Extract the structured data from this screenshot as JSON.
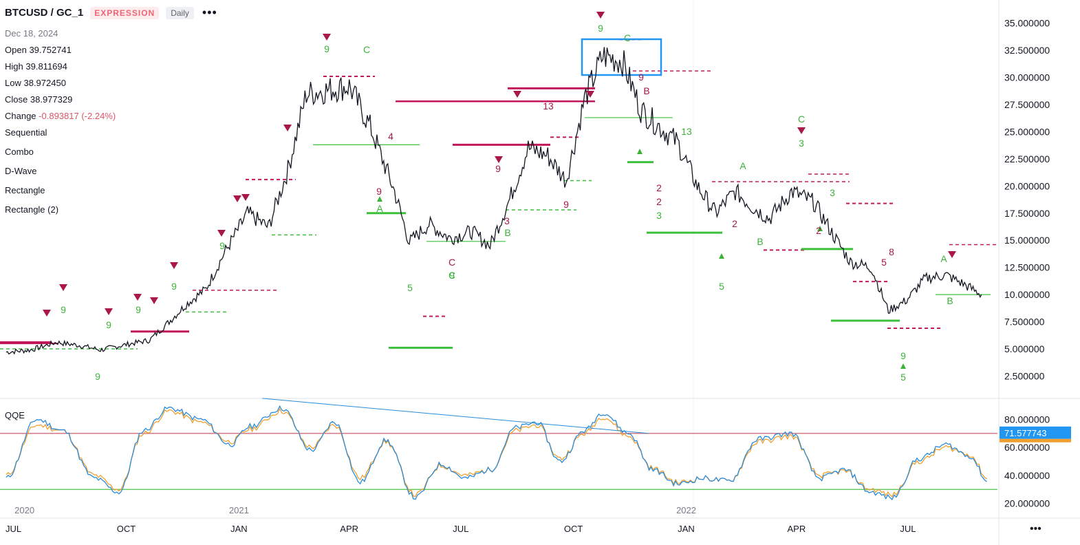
{
  "header": {
    "symbol": "BTCUSD / GC_1",
    "badge_type": "EXPRESSION",
    "interval": "Daily",
    "more_icon": "ellipsis-icon"
  },
  "ohlc": {
    "date": "Dec 18, 2024",
    "open_label": "Open",
    "open": "39.752741",
    "high_label": "High",
    "high": "39.811694",
    "low_label": "Low",
    "low": "38.972450",
    "close_label": "Close",
    "close": "38.977329",
    "change_label": "Change",
    "change": "-0.893817 (-2.24%)"
  },
  "indicators": [
    "Sequential",
    "Combo",
    "D-Wave",
    "Rectangle",
    "Rectangle (2)"
  ],
  "qqe_label": "QQE",
  "colors": {
    "price": "#131722",
    "sell_marker": "#a9174b",
    "buy_marker": "#3bb33b",
    "resistance": "#c2185b",
    "support": "#3cc03c",
    "qqe_fast": "#2a8bd8",
    "qqe_slow": "#f0a030",
    "qqe_upper": "#d26b7a",
    "qqe_lower": "#4cc24c",
    "badge_bg": "#2196f3",
    "highlight_box": "#2196f3"
  },
  "chart_data": [
    {
      "type": "line",
      "name": "BTCUSD / GC_1",
      "x_ticks": [
        "JUL",
        "2020",
        "OCT",
        "JAN",
        "2021",
        "APR",
        "JUL",
        "OCT",
        "JAN",
        "2022",
        "APR",
        "JUL"
      ],
      "x": [
        "2020-06-25",
        "2020-07-15",
        "2020-08-05",
        "2020-08-25",
        "2020-09-10",
        "2020-10-01",
        "2020-10-20",
        "2020-11-05",
        "2020-11-20",
        "2020-12-05",
        "2020-12-20",
        "2021-01-08",
        "2021-01-25",
        "2021-02-10",
        "2021-02-25",
        "2021-03-12",
        "2021-04-01",
        "2021-04-18",
        "2021-05-08",
        "2021-05-20",
        "2021-06-05",
        "2021-06-22",
        "2021-07-10",
        "2021-07-25",
        "2021-08-10",
        "2021-08-25",
        "2021-09-10",
        "2021-09-25",
        "2021-10-10",
        "2021-10-25",
        "2021-11-10",
        "2021-11-25",
        "2021-12-10",
        "2021-12-25",
        "2022-01-10",
        "2022-01-25",
        "2022-02-10",
        "2022-02-25",
        "2022-03-10",
        "2022-03-28",
        "2022-04-15",
        "2022-05-01",
        "2022-05-15",
        "2022-06-01",
        "2022-06-15",
        "2022-06-30",
        "2022-07-15",
        "2022-08-01",
        "2022-08-15",
        "2022-08-30"
      ],
      "y": [
        4.7,
        4.9,
        5.6,
        5.3,
        4.9,
        5.4,
        5.8,
        7.5,
        9.2,
        10.5,
        13.8,
        17.5,
        16.2,
        21.5,
        28.5,
        28.8,
        29.2,
        25.5,
        19.5,
        14.8,
        16.5,
        15.2,
        15.8,
        14.5,
        18.8,
        23.5,
        22.8,
        20.5,
        28.0,
        32.0,
        31.5,
        27.0,
        25.5,
        24.0,
        20.0,
        17.5,
        19.5,
        18.0,
        17.0,
        19.5,
        18.5,
        15.5,
        13.0,
        12.5,
        8.5,
        9.5,
        11.5,
        11.8,
        11.0,
        10.0
      ],
      "ylim": [
        0.5,
        36.5
      ],
      "y_ticks": [
        "35.000000",
        "32.500000",
        "30.000000",
        "27.500000",
        "25.000000",
        "22.500000",
        "20.000000",
        "17.500000",
        "15.000000",
        "12.500000",
        "10.000000",
        "7.500000",
        "5.000000",
        "2.500000"
      ],
      "resistance_levels": [
        {
          "y": 5.6
        },
        {
          "y": 5.5
        },
        {
          "y": 6.6
        },
        {
          "y": 10.4
        },
        {
          "y": 20.6
        },
        {
          "y": 30.1
        },
        {
          "y": 27.8
        },
        {
          "y": 29.0
        },
        {
          "y": 23.8
        },
        {
          "y": 24.5
        },
        {
          "y": 33.5
        },
        {
          "y": 30.6
        },
        {
          "y": 20.4
        },
        {
          "y": 21.1
        },
        {
          "y": 18.4
        },
        {
          "y": 14.1
        },
        {
          "y": 11.2
        },
        {
          "y": 14.6
        },
        {
          "y": 6.9
        },
        {
          "y": 8.0
        }
      ],
      "support_levels": [
        {
          "y": 5.0
        },
        {
          "y": 8.4
        },
        {
          "y": 15.5
        },
        {
          "y": 23.8
        },
        {
          "y": 17.5
        },
        {
          "y": 14.9
        },
        {
          "y": 17.8
        },
        {
          "y": 20.5
        },
        {
          "y": 26.3
        },
        {
          "y": 22.2
        },
        {
          "y": 15.7
        },
        {
          "y": 14.2
        },
        {
          "y": 7.6
        },
        {
          "y": 10.0
        },
        {
          "y": 5.1
        }
      ],
      "wave_labels_sell": [
        "C",
        "C",
        "C",
        "C"
      ],
      "wave_labels_buy": [
        "A",
        "B",
        "C",
        "A",
        "B",
        "A",
        "B",
        "B"
      ],
      "count_labels_buy": [
        "9",
        "9",
        "9",
        "9",
        "9",
        "9",
        "9",
        "3",
        "5",
        "9",
        "3",
        "5",
        "9",
        "5"
      ],
      "count_labels_sell": [
        "9",
        "9",
        "9",
        "9",
        "9",
        "13",
        "2",
        "2",
        "4",
        "3",
        "5",
        "8",
        "2",
        "13",
        "2",
        "3"
      ]
    },
    {
      "type": "line",
      "name": "QQE",
      "y_ticks": [
        "80.000000",
        "60.000000",
        "40.000000",
        "20.000000"
      ],
      "ylim": [
        10,
        92
      ],
      "current_value": "71.577743",
      "upper_level": 70,
      "lower_level": 30,
      "x": [
        "2020-06-25",
        "2020-07-20",
        "2020-08-10",
        "2020-09-05",
        "2020-09-25",
        "2020-10-15",
        "2020-11-05",
        "2020-12-01",
        "2020-12-25",
        "2021-01-10",
        "2021-02-05",
        "2021-03-01",
        "2021-03-20",
        "2021-04-10",
        "2021-05-01",
        "2021-05-25",
        "2021-06-15",
        "2021-07-05",
        "2021-07-25",
        "2021-08-15",
        "2021-09-01",
        "2021-09-20",
        "2021-10-10",
        "2021-10-25",
        "2021-11-15",
        "2021-12-05",
        "2021-12-25",
        "2022-01-15",
        "2022-02-05",
        "2022-03-01",
        "2022-03-28",
        "2022-04-20",
        "2022-05-10",
        "2022-06-01",
        "2022-06-18",
        "2022-07-10",
        "2022-08-01",
        "2022-08-20",
        "2022-09-05"
      ],
      "fast": [
        38,
        80,
        72,
        38,
        28,
        72,
        88,
        80,
        62,
        75,
        88,
        58,
        78,
        35,
        65,
        24,
        48,
        38,
        44,
        74,
        78,
        50,
        72,
        85,
        70,
        44,
        34,
        38,
        36,
        66,
        70,
        38,
        44,
        28,
        24,
        52,
        62,
        54,
        35
      ],
      "slow": [
        40,
        76,
        72,
        40,
        30,
        70,
        86,
        78,
        64,
        73,
        86,
        60,
        76,
        38,
        64,
        26,
        47,
        40,
        44,
        72,
        76,
        52,
        70,
        82,
        68,
        45,
        35,
        38,
        36,
        64,
        68,
        40,
        43,
        30,
        26,
        50,
        60,
        55,
        37
      ],
      "trendline": [
        {
          "x": "2021-01-20",
          "y": 95
        },
        {
          "x": "2021-12-01",
          "y": 70
        }
      ]
    }
  ]
}
